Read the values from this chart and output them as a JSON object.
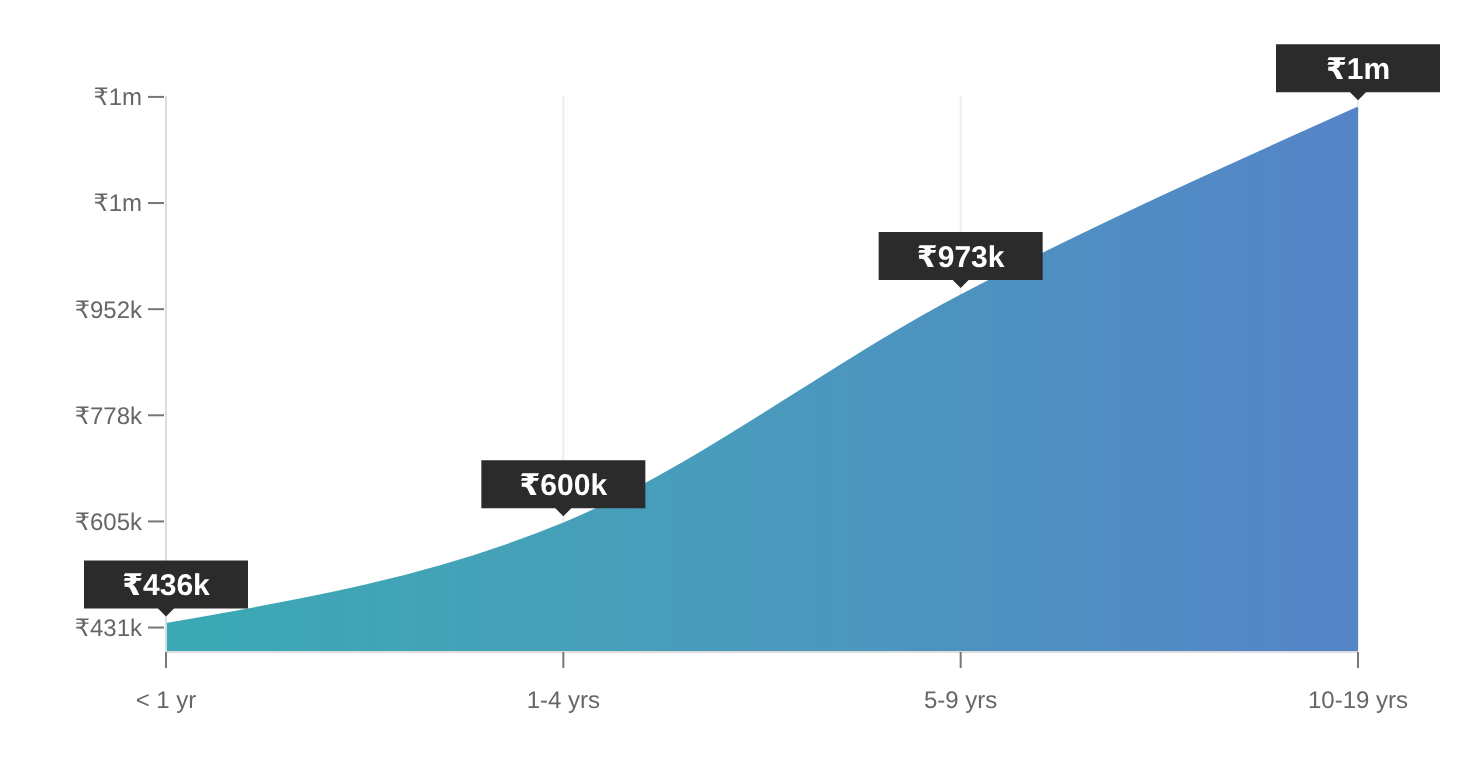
{
  "chart_data": {
    "type": "area",
    "categories": [
      "< 1 yr",
      "1-4 yrs",
      "5-9 yrs",
      "10-19 yrs"
    ],
    "values": [
      436000,
      600000,
      973000,
      1280000
    ],
    "value_labels": [
      "₹436k",
      "₹600k",
      "₹973k",
      "₹1m"
    ],
    "colors": [
      "#3aa9b4",
      "#46a0b9",
      "#4d93c0",
      "#5584c8"
    ],
    "ylim": [
      391000,
      1300000
    ],
    "yticks": [
      {
        "value": 431000,
        "label": "₹431k"
      },
      {
        "value": 604500,
        "label": "₹605k"
      },
      {
        "value": 778000,
        "label": "₹778k"
      },
      {
        "value": 951500,
        "label": "₹952k"
      },
      {
        "value": 1125000,
        "label": "₹1m"
      },
      {
        "value": 1298500,
        "label": "₹1m"
      }
    ],
    "grid": "x"
  }
}
